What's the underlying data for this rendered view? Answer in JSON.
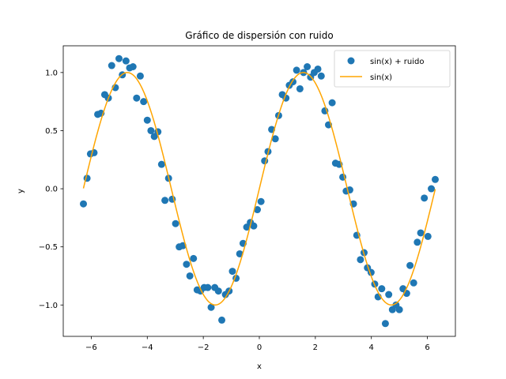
{
  "chart_data": {
    "type": "scatter",
    "title": "Gráfico de dispersión con ruido",
    "xlabel": "x",
    "ylabel": "y",
    "xlim": [
      -7.0,
      7.0
    ],
    "ylim": [
      -1.27,
      1.23
    ],
    "xticks": [
      -6,
      -4,
      -2,
      0,
      2,
      4,
      6
    ],
    "yticks": [
      -1.0,
      -0.5,
      0.0,
      0.5,
      1.0
    ],
    "grid": false,
    "legend": "top-right",
    "series": [
      {
        "name": "sin(x) + ruido",
        "kind": "scatter",
        "color": "#1f77b4",
        "x": [
          -6.28,
          -6.15,
          -6.03,
          -5.9,
          -5.77,
          -5.65,
          -5.52,
          -5.39,
          -5.27,
          -5.14,
          -5.01,
          -4.89,
          -4.76,
          -4.63,
          -4.51,
          -4.38,
          -4.25,
          -4.13,
          -4.0,
          -3.87,
          -3.75,
          -3.62,
          -3.49,
          -3.37,
          -3.24,
          -3.11,
          -2.99,
          -2.86,
          -2.73,
          -2.6,
          -2.48,
          -2.35,
          -2.22,
          -2.1,
          -1.97,
          -1.84,
          -1.72,
          -1.59,
          -1.46,
          -1.34,
          -1.21,
          -1.08,
          -0.96,
          -0.83,
          -0.7,
          -0.58,
          -0.45,
          -0.32,
          -0.2,
          -0.07,
          0.06,
          0.19,
          0.31,
          0.44,
          0.57,
          0.69,
          0.82,
          0.95,
          1.07,
          1.2,
          1.33,
          1.45,
          1.58,
          1.71,
          1.83,
          1.96,
          2.09,
          2.21,
          2.34,
          2.47,
          2.6,
          2.72,
          2.85,
          2.98,
          3.1,
          3.23,
          3.36,
          3.48,
          3.61,
          3.74,
          3.86,
          3.99,
          4.12,
          4.24,
          4.37,
          4.5,
          4.62,
          4.75,
          4.88,
          5.0,
          5.13,
          5.26,
          5.38,
          5.51,
          5.64,
          5.76,
          5.89,
          6.02,
          6.14,
          6.28
        ],
        "y": [
          -0.13,
          0.09,
          0.3,
          0.31,
          0.64,
          0.65,
          0.81,
          0.78,
          1.06,
          0.87,
          1.12,
          0.98,
          1.1,
          1.04,
          1.05,
          0.78,
          0.97,
          0.75,
          0.59,
          0.5,
          0.45,
          0.49,
          0.21,
          -0.1,
          0.09,
          -0.09,
          -0.3,
          -0.5,
          -0.49,
          -0.65,
          -0.75,
          -0.6,
          -0.87,
          -0.88,
          -0.85,
          -0.85,
          -1.02,
          -0.85,
          -0.88,
          -1.13,
          -0.91,
          -0.88,
          -0.71,
          -0.77,
          -0.56,
          -0.47,
          -0.33,
          -0.29,
          -0.32,
          -0.18,
          -0.11,
          0.24,
          0.32,
          0.51,
          0.43,
          0.63,
          0.81,
          0.78,
          0.89,
          0.92,
          1.02,
          0.86,
          1.0,
          1.05,
          0.96,
          1.0,
          1.03,
          0.97,
          0.67,
          0.55,
          0.74,
          0.22,
          0.21,
          0.1,
          -0.02,
          -0.01,
          -0.13,
          -0.4,
          -0.61,
          -0.55,
          -0.68,
          -0.72,
          -0.82,
          -0.93,
          -0.86,
          -1.16,
          -0.91,
          -1.04,
          -1.0,
          -1.04,
          -0.86,
          -0.9,
          -0.66,
          -0.81,
          -0.46,
          -0.38,
          -0.08,
          -0.41,
          0.0,
          0.08
        ]
      },
      {
        "name": "sin(x)",
        "kind": "line",
        "color": "#ffa500",
        "function": "sin",
        "x_range": [
          -6.28,
          6.28
        ]
      }
    ]
  }
}
